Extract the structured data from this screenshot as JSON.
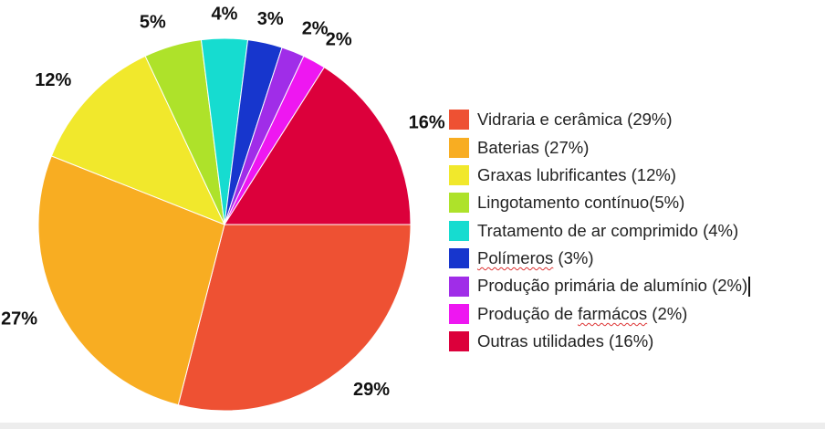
{
  "chart_data": {
    "type": "pie",
    "title": "",
    "start_angle_deg": 0,
    "direction": "clockwise",
    "slices": [
      {
        "label": "Vidraria e cerâmica (29%)",
        "value": 29,
        "pct_label": "29%",
        "color": "#ee5133"
      },
      {
        "label": "Baterias (27%)",
        "value": 27,
        "pct_label": "27%",
        "color": "#f8ad22"
      },
      {
        "label": "Graxas lubrificantes (12%)",
        "value": 12,
        "pct_label": "12%",
        "color": "#f1e82c"
      },
      {
        "label": "Lingotamento contínuo(5%)",
        "value": 5,
        "pct_label": "5%",
        "color": "#aee22a"
      },
      {
        "label": "Tratamento de ar comprimido (4%)",
        "value": 4,
        "pct_label": "4%",
        "color": "#16dcd0"
      },
      {
        "label": "Polímeros (3%)",
        "value": 3,
        "pct_label": "3%",
        "color": "#1736cd"
      },
      {
        "label": "Produção primária de alumínio (2%)",
        "value": 2,
        "pct_label": "2%",
        "color": "#a02de8"
      },
      {
        "label": "Produção de farmácos (2%)",
        "value": 2,
        "pct_label": "2%",
        "color": "#ee17f1"
      },
      {
        "label": "Outras utilidades (16%)",
        "value": 16,
        "pct_label": "16%",
        "color": "#dc003b"
      }
    ],
    "legend_position": "right"
  },
  "legend": {
    "items": [
      {
        "pre": "Vidraria e cerâmica (29%)",
        "word": "",
        "post": "",
        "color": "#ee5133"
      },
      {
        "pre": "Baterias (27%)",
        "word": "",
        "post": "",
        "color": "#f8ad22"
      },
      {
        "pre": "Graxas lubrificantes (12%)",
        "word": "",
        "post": "",
        "color": "#f1e82c"
      },
      {
        "pre": "Lingotamento contínuo(5%)",
        "word": "",
        "post": "",
        "color": "#aee22a"
      },
      {
        "pre": "Tratamento de ar comprimido (4%)",
        "word": "",
        "post": "",
        "color": "#16dcd0"
      },
      {
        "pre": "",
        "word": "Polímeros",
        "post": " (3%)",
        "color": "#1736cd"
      },
      {
        "pre": "Produção primária de alumínio (2%)",
        "word": "",
        "post": "",
        "color": "#a02de8"
      },
      {
        "pre": "Produção de ",
        "word": "farmácos",
        "post": " (2%)",
        "color": "#ee17f1"
      },
      {
        "pre": "Outras utilidades (16%)",
        "word": "",
        "post": "",
        "color": "#dc003b"
      }
    ]
  }
}
